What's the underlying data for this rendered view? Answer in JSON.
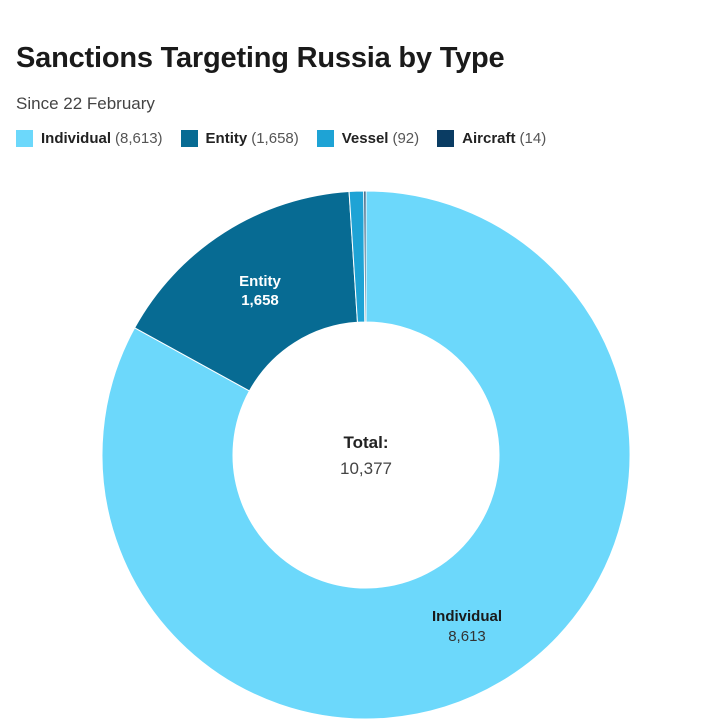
{
  "chart_data": {
    "type": "pie",
    "title": "Sanctions Targeting Russia by Type",
    "subtitle": "Since 22 February",
    "legend_position": "top-left",
    "donut": true,
    "center_label": "Total:",
    "center_value": "10,377",
    "total": 10377,
    "slices": [
      {
        "name": "Individual",
        "value": 8613,
        "value_label": "8,613",
        "legend_count": "(8,613)",
        "color": "#6cd8fb"
      },
      {
        "name": "Entity",
        "value": 1658,
        "value_label": "1,658",
        "legend_count": "(1,658)",
        "color": "#076b93"
      },
      {
        "name": "Vessel",
        "value": 92,
        "value_label": "",
        "legend_count": "(92)",
        "color": "#1ea3d5"
      },
      {
        "name": "Aircraft",
        "value": 14,
        "value_label": "",
        "legend_count": "(14)",
        "color": "#0a3c63"
      }
    ]
  }
}
